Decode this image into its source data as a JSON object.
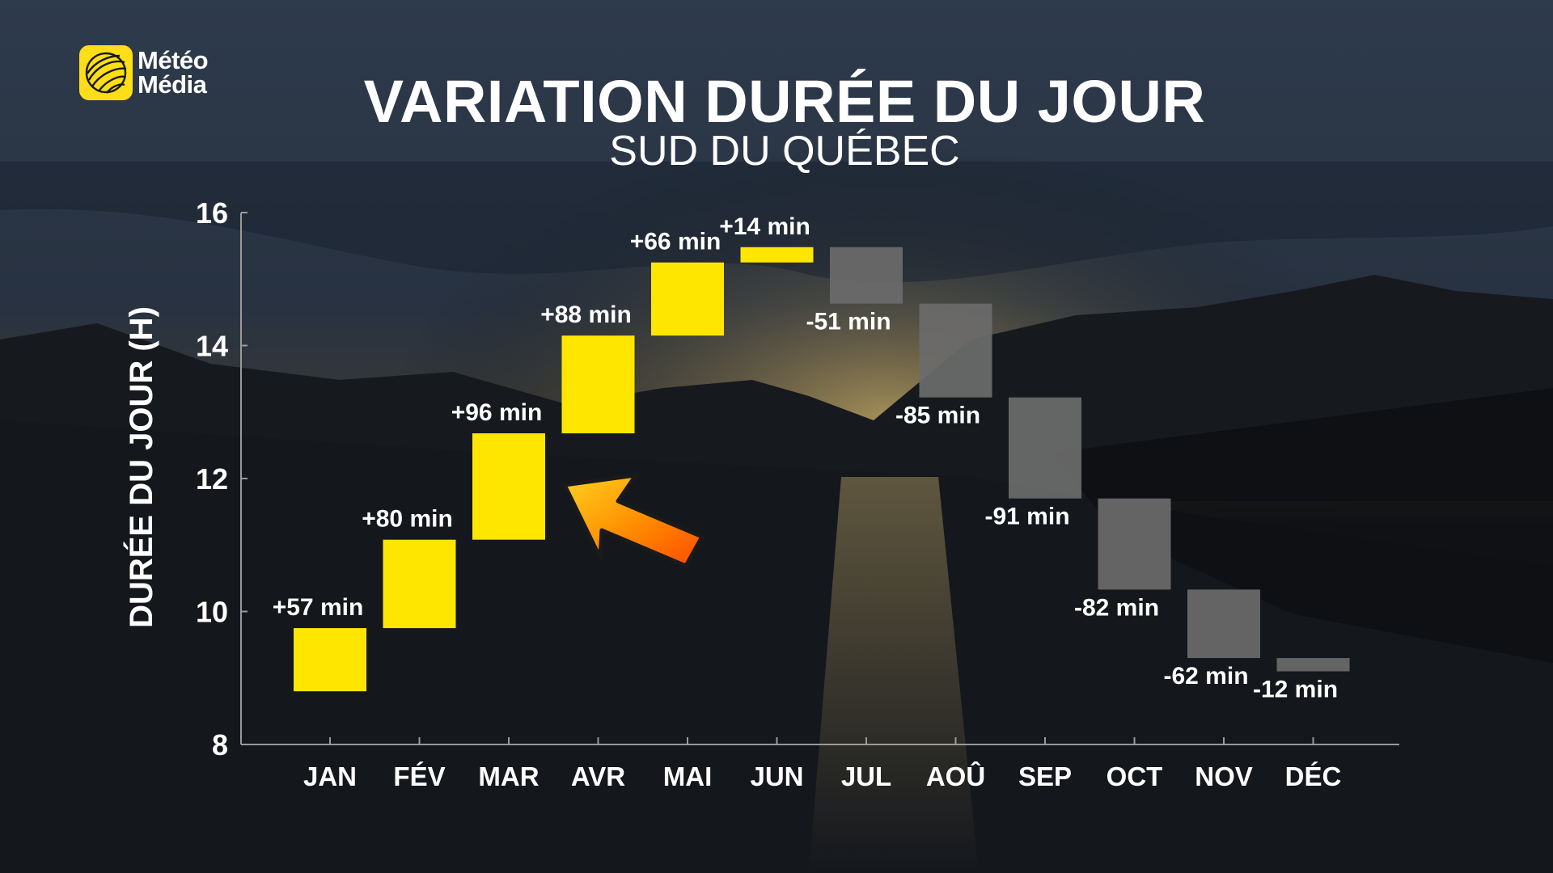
{
  "brand": {
    "name_line1": "Météo",
    "name_line2": "Média",
    "icon": "globe-icon",
    "accent": "#ffde17"
  },
  "annotation": {
    "icon": "arrow-icon"
  },
  "colors": {
    "increase": "#ffe600",
    "decrease": "#6b6b6b",
    "axis": "#9a9a9a",
    "text": "#ffffff"
  },
  "chart_data": {
    "type": "bar",
    "subtype": "waterfall",
    "title": "VARIATION DURÉE DU JOUR",
    "subtitle": "SUD DU QUÉBEC",
    "xlabel": "",
    "ylabel": "DURÉE DU JOUR (H)",
    "ylim": [
      8,
      16
    ],
    "yticks": [
      "8",
      "10",
      "12",
      "14",
      "16"
    ],
    "grid": false,
    "categories": [
      "JAN",
      "FÉV",
      "MAR",
      "AVR",
      "MAI",
      "JUN",
      "JUL",
      "AOÛ",
      "SEP",
      "OCT",
      "NOV",
      "DÉC"
    ],
    "values_min": [
      57,
      80,
      96,
      88,
      66,
      14,
      -51,
      -85,
      -91,
      -82,
      -62,
      -12
    ],
    "labels": [
      "+57 min",
      "+80 min",
      "+96 min",
      "+88 min",
      "+66 min",
      "+14 min",
      "-51 min",
      "-85 min",
      "-91 min",
      "-82 min",
      "-62 min",
      "-12 min"
    ],
    "ranges_h": [
      [
        8.8,
        9.75
      ],
      [
        9.75,
        11.08
      ],
      [
        11.08,
        12.68
      ],
      [
        12.68,
        14.15
      ],
      [
        14.15,
        15.25
      ],
      [
        15.25,
        15.48
      ],
      [
        15.48,
        14.63
      ],
      [
        14.63,
        13.22
      ],
      [
        13.22,
        11.7
      ],
      [
        11.7,
        10.33
      ],
      [
        10.33,
        9.3
      ],
      [
        9.3,
        9.1
      ]
    ]
  }
}
